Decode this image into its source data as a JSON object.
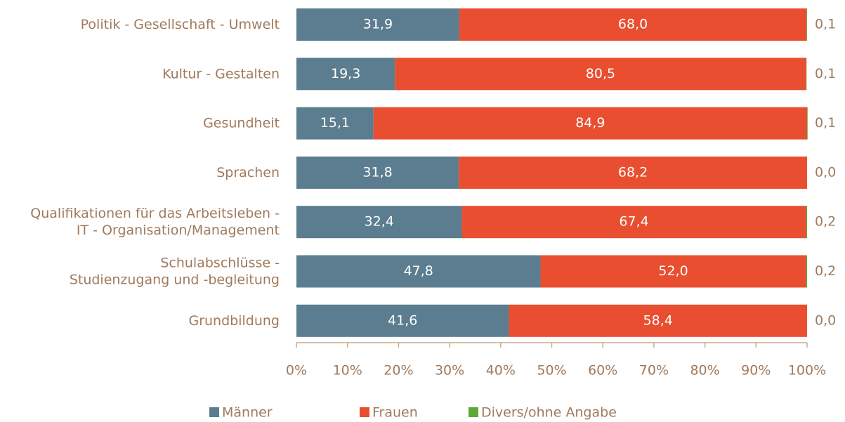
{
  "chart_data": {
    "type": "stacked_barh",
    "categories": [
      "Politik - Gesellschaft - Umwelt",
      "Kultur - Gestalten",
      "Gesundheit",
      "Sprachen",
      "Qualifikationen für das Arbeitsleben -\nIT - Organisation/Management",
      "Schulabschlüsse -\nStudienzugang und -begleitung",
      "Grundbildung"
    ],
    "series": [
      {
        "name": "Männer",
        "color": "#5b7d8f",
        "values": [
          31.9,
          19.3,
          15.1,
          31.8,
          32.4,
          47.8,
          41.6
        ],
        "value_labels": [
          "31,9",
          "19,3",
          "15,1",
          "31,8",
          "32,4",
          "47,8",
          "41,6"
        ]
      },
      {
        "name": "Frauen",
        "color": "#e84e2f",
        "values": [
          68.0,
          80.5,
          84.9,
          68.2,
          67.4,
          52.0,
          58.4
        ],
        "value_labels": [
          "68,0",
          "80,5",
          "84,9",
          "68,2",
          "67,4",
          "52,0",
          "58,4"
        ]
      },
      {
        "name": "Divers/ohne Angabe",
        "color": "#5ea838",
        "values": [
          0.1,
          0.1,
          0.1,
          0.0,
          0.2,
          0.2,
          0.0
        ],
        "value_labels": [
          "0,1",
          "0,1",
          "0,1",
          "0,0",
          "0,2",
          "0,2",
          "0,0"
        ]
      }
    ],
    "xlim": [
      0,
      100
    ],
    "xticks": [
      {
        "value": 0,
        "label": "0%"
      },
      {
        "value": 10,
        "label": "10%"
      },
      {
        "value": 20,
        "label": "20%"
      },
      {
        "value": 30,
        "label": "30%"
      },
      {
        "value": 40,
        "label": "40%"
      },
      {
        "value": 50,
        "label": "50%"
      },
      {
        "value": 60,
        "label": "60%"
      },
      {
        "value": 70,
        "label": "70%"
      },
      {
        "value": 80,
        "label": "80%"
      },
      {
        "value": 90,
        "label": "90%"
      },
      {
        "value": 100,
        "label": "100%"
      }
    ],
    "legend": "bottom"
  }
}
